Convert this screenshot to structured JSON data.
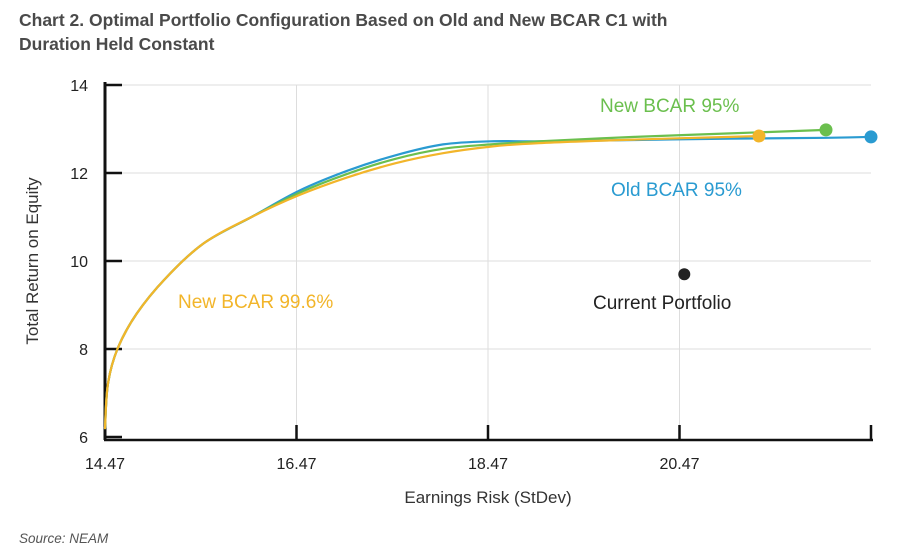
{
  "title_line1": "Chart 2. Optimal Portfolio Configuration Based on Old and New BCAR C1 with",
  "title_line2": "Duration Held Constant",
  "source": "Source: NEAM",
  "colors": {
    "new_bcar_95": "#6bbf4e",
    "old_bcar_95": "#2a9bd1",
    "new_bcar_996": "#f2b52a",
    "current_portfolio": "#222222",
    "grid": "#dddddd",
    "axis": "#111111"
  },
  "chart_data": {
    "type": "line",
    "title": "Chart 2. Optimal Portfolio Configuration Based on Old and New BCAR C1 with Duration Held Constant",
    "xlabel": "Earnings Risk (StDev)",
    "ylabel": "Total Return on Equity",
    "xlim": [
      14.47,
      22.47
    ],
    "ylim": [
      6,
      14
    ],
    "x_ticks": [
      "14.47",
      "16.47",
      "18.47",
      "20.47"
    ],
    "y_ticks": [
      "6",
      "8",
      "10",
      "12",
      "14"
    ],
    "grid": "on",
    "series": [
      {
        "name": "Old BCAR 95%",
        "color": "#2a9bd1",
        "points": [
          [
            14.47,
            6.2
          ],
          [
            14.5,
            7.2
          ],
          [
            14.6,
            8.0
          ],
          [
            14.8,
            8.8
          ],
          [
            15.1,
            9.6
          ],
          [
            15.5,
            10.4
          ],
          [
            16.0,
            11.0
          ],
          [
            16.5,
            11.6
          ],
          [
            17.0,
            12.05
          ],
          [
            17.5,
            12.4
          ],
          [
            18.0,
            12.65
          ],
          [
            18.5,
            12.72
          ],
          [
            19.0,
            12.72
          ],
          [
            20.0,
            12.75
          ],
          [
            21.0,
            12.78
          ],
          [
            22.0,
            12.8
          ],
          [
            22.47,
            12.82
          ]
        ]
      },
      {
        "name": "New BCAR 95%",
        "color": "#6bbf4e",
        "points": [
          [
            14.47,
            6.2
          ],
          [
            14.5,
            7.2
          ],
          [
            14.6,
            8.0
          ],
          [
            14.8,
            8.8
          ],
          [
            15.1,
            9.6
          ],
          [
            15.5,
            10.4
          ],
          [
            16.0,
            11.0
          ],
          [
            16.5,
            11.55
          ],
          [
            17.0,
            11.98
          ],
          [
            17.5,
            12.32
          ],
          [
            18.0,
            12.55
          ],
          [
            18.5,
            12.65
          ],
          [
            19.0,
            12.72
          ],
          [
            20.0,
            12.82
          ],
          [
            21.0,
            12.9
          ],
          [
            22.0,
            12.98
          ]
        ]
      },
      {
        "name": "New BCAR 99.6%",
        "color": "#f2b52a",
        "points": [
          [
            14.47,
            6.2
          ],
          [
            14.5,
            7.2
          ],
          [
            14.6,
            8.0
          ],
          [
            14.8,
            8.8
          ],
          [
            15.1,
            9.6
          ],
          [
            15.5,
            10.4
          ],
          [
            16.0,
            11.0
          ],
          [
            16.5,
            11.5
          ],
          [
            17.0,
            11.9
          ],
          [
            17.5,
            12.22
          ],
          [
            18.0,
            12.45
          ],
          [
            18.5,
            12.6
          ],
          [
            19.0,
            12.68
          ],
          [
            20.0,
            12.76
          ],
          [
            21.0,
            12.82
          ],
          [
            21.3,
            12.84
          ]
        ]
      }
    ],
    "endpoints": [
      {
        "series": "Old BCAR 95%",
        "x": 22.47,
        "y": 12.82
      },
      {
        "series": "New BCAR 95%",
        "x": 22.0,
        "y": 12.98
      },
      {
        "series": "New BCAR 99.6%",
        "x": 21.3,
        "y": 12.84
      }
    ],
    "current_portfolio": {
      "label": "Current Portfolio",
      "x": 20.52,
      "y": 9.7
    },
    "annotations": [
      {
        "text": "New BCAR 95%",
        "series": "New BCAR 95%"
      },
      {
        "text": "Old BCAR 95%",
        "series": "Old BCAR 95%"
      },
      {
        "text": "New BCAR 99.6%",
        "series": "New BCAR 99.6%"
      },
      {
        "text": "Current Portfolio",
        "series": "current"
      }
    ]
  }
}
